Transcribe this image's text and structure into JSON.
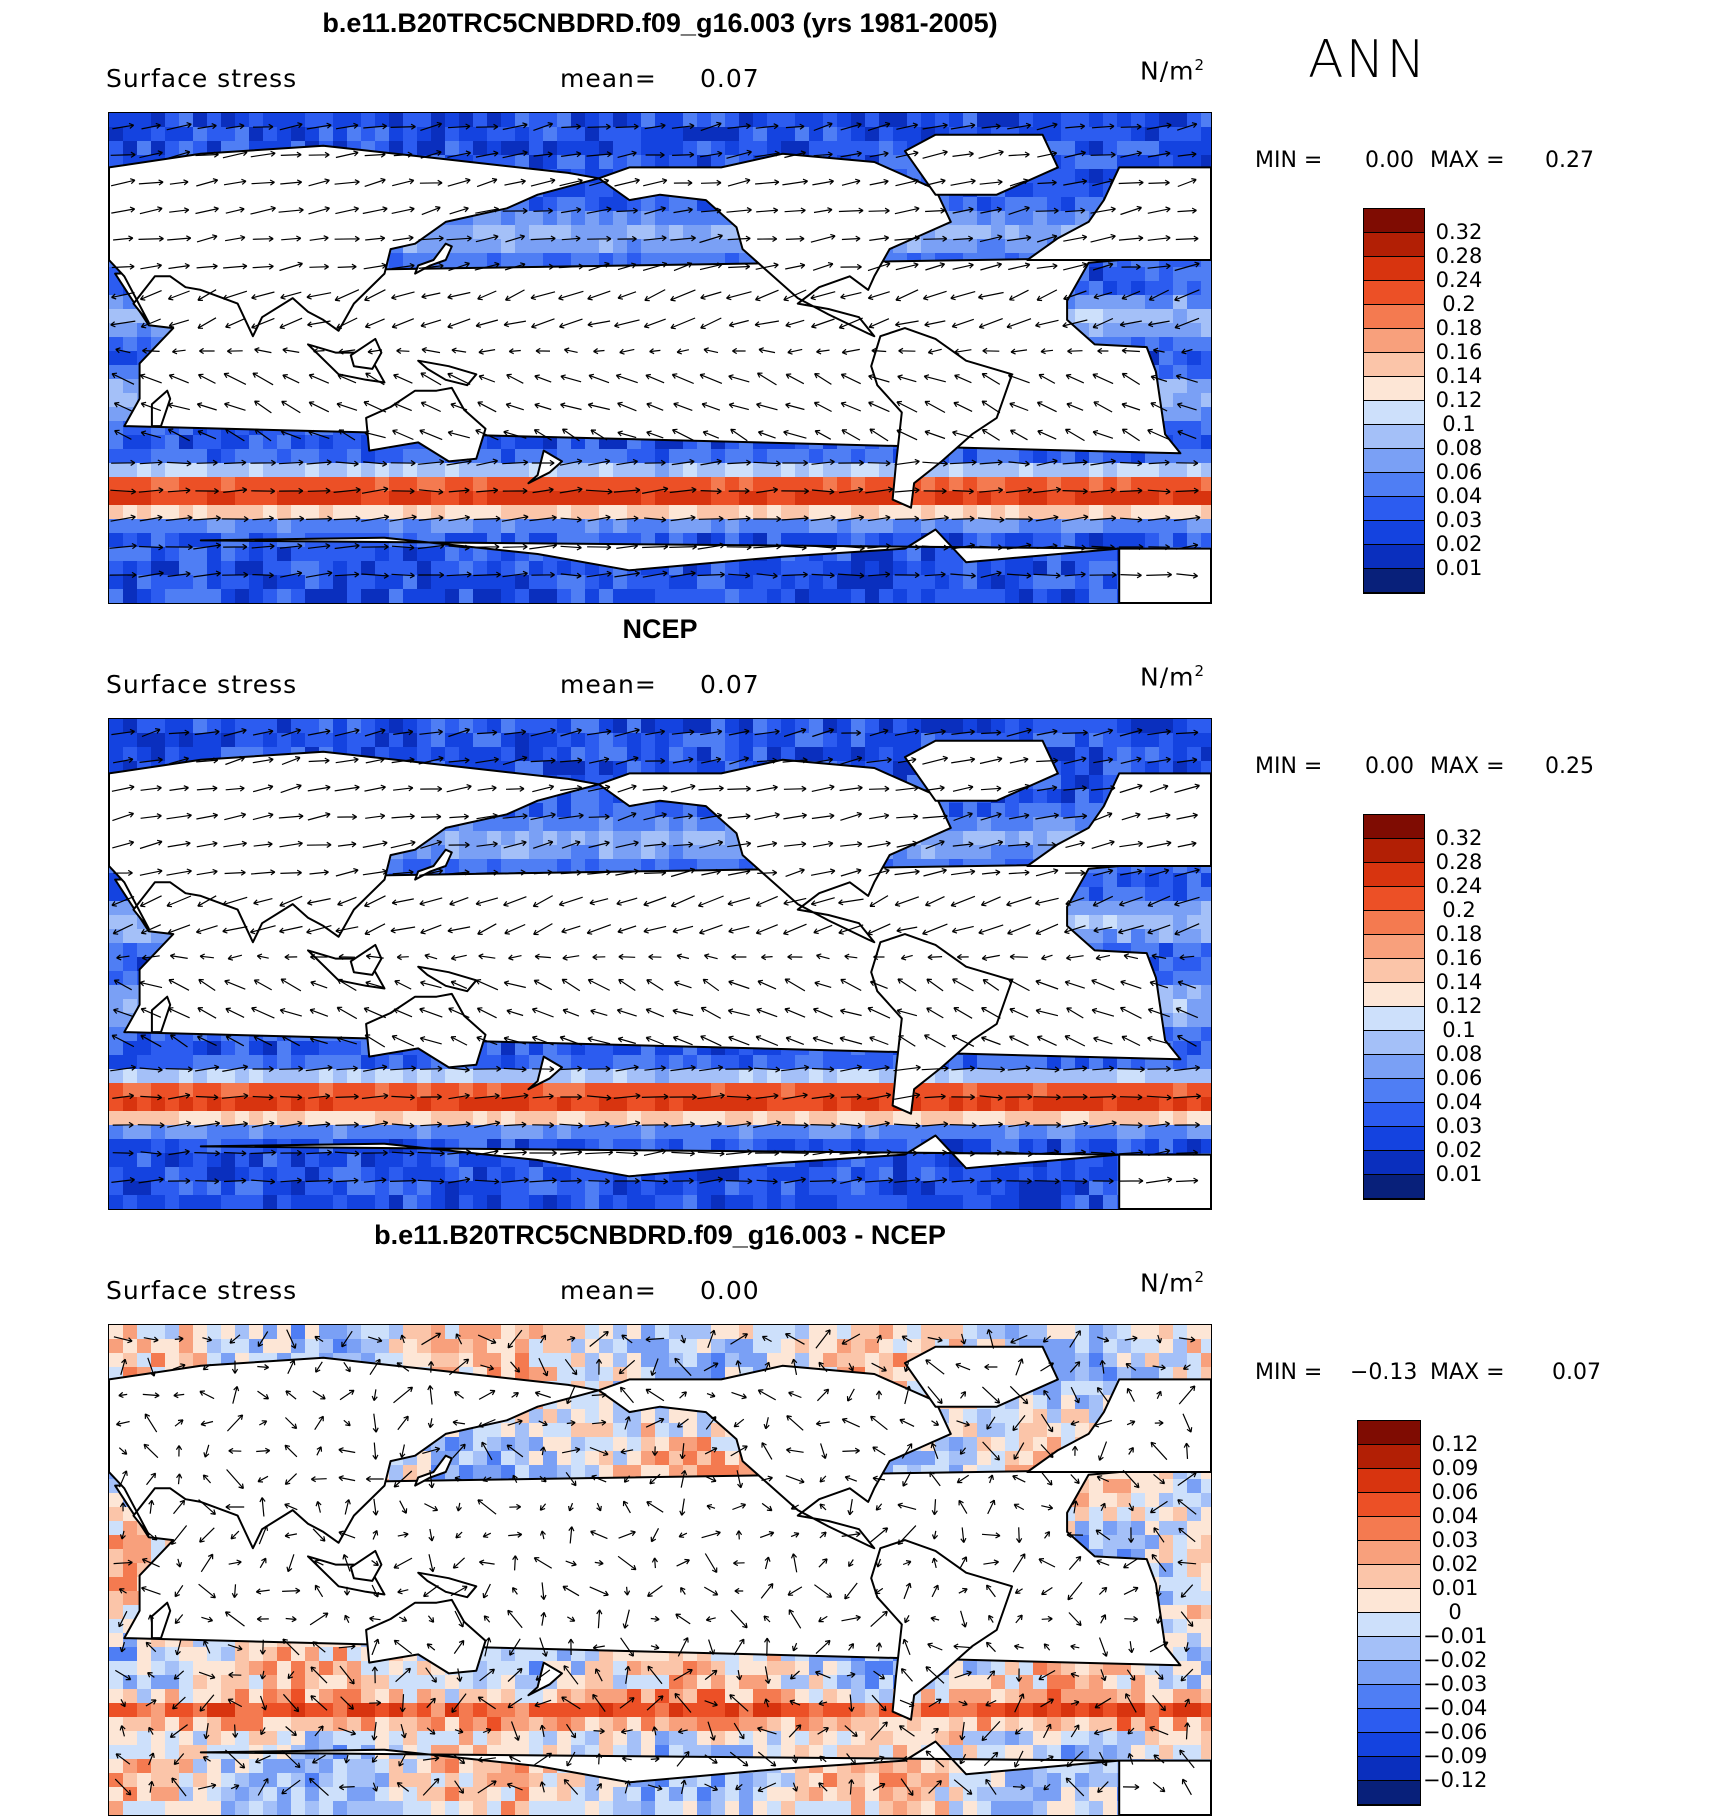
{
  "season": "ANN",
  "colors": {
    "seq_palette": [
      "#08207a",
      "#0a2fbe",
      "#1443e0",
      "#2c5cf0",
      "#4f7ef4",
      "#7aa0f5",
      "#a4c0f8",
      "#cde0fb",
      "#fde6d6",
      "#fbc5a9",
      "#f8a07c",
      "#f47a50",
      "#ec5026",
      "#d8340f",
      "#b21f05",
      "#7f0c02"
    ],
    "div_palette": [
      "#08207a",
      "#0a2fbe",
      "#1443e0",
      "#2c5cf0",
      "#4f7ef4",
      "#7aa0f5",
      "#a4c0f8",
      "#cde0fb",
      "#fde6d6",
      "#fbc5a9",
      "#f8a07c",
      "#f47a50",
      "#ec5026",
      "#d8340f",
      "#b21f05",
      "#7f0c02"
    ],
    "land": "#ffffff"
  },
  "panels": [
    {
      "title": "b.e11.B20TRC5CNBDRD.f09_g16.003 (yrs 1981-2005)",
      "variable": "Surface stress",
      "mean_label": "mean=",
      "mean_value": "0.07",
      "units_base": "N/m",
      "units_exp": "2",
      "min_label": "MIN =",
      "min_value": "0.00",
      "max_label": "MAX =",
      "max_value": "0.27",
      "colorbar_labels": [
        "0.32",
        "0.28",
        "0.24",
        "0.2",
        "0.18",
        "0.16",
        "0.14",
        "0.12",
        "0.1",
        "0.08",
        "0.06",
        "0.04",
        "0.03",
        "0.02",
        "0.01"
      ]
    },
    {
      "title": "NCEP",
      "variable": "Surface stress",
      "mean_label": "mean=",
      "mean_value": "0.07",
      "units_base": "N/m",
      "units_exp": "2",
      "min_label": "MIN =",
      "min_value": "0.00",
      "max_label": "MAX =",
      "max_value": "0.25",
      "colorbar_labels": [
        "0.32",
        "0.28",
        "0.24",
        "0.2",
        "0.18",
        "0.16",
        "0.14",
        "0.12",
        "0.1",
        "0.08",
        "0.06",
        "0.04",
        "0.03",
        "0.02",
        "0.01"
      ]
    },
    {
      "title": "b.e11.B20TRC5CNBDRD.f09_g16.003 - NCEP",
      "variable": "Surface stress",
      "mean_label": "mean=",
      "mean_value": "0.00",
      "units_base": "N/m",
      "units_exp": "2",
      "min_label": "MIN =",
      "min_value": "−0.13",
      "max_label": "MAX =",
      "max_value": "0.07",
      "colorbar_labels": [
        "0.12",
        "0.09",
        "0.06",
        "0.04",
        "0.03",
        "0.02",
        "0.01",
        "0",
        "−0.01",
        "−0.02",
        "−0.03",
        "−0.04",
        "−0.06",
        "−0.09",
        "−0.12"
      ]
    }
  ]
}
